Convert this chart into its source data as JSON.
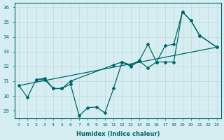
{
  "bg_color": "#d6eef2",
  "grid_color": "#c0d8dc",
  "line_color": "#006666",
  "xlabel": "Humidex (Indice chaleur)",
  "ylim": [
    28.5,
    36.3
  ],
  "xlim": [
    -0.5,
    23.5
  ],
  "x_ticks": [
    0,
    1,
    2,
    3,
    4,
    5,
    6,
    7,
    8,
    9,
    10,
    11,
    12,
    13,
    14,
    15,
    16,
    17,
    18,
    19,
    20,
    21,
    22,
    23
  ],
  "y_ticks": [
    29,
    30,
    31,
    32,
    33,
    34,
    35,
    36
  ],
  "trend_x": [
    0,
    23
  ],
  "trend_y": [
    30.7,
    33.3
  ],
  "upper_x": [
    2,
    3,
    4,
    5,
    6,
    11,
    12,
    13,
    14,
    15,
    16,
    17,
    18,
    19,
    20,
    21,
    23
  ],
  "upper_y": [
    31.1,
    31.2,
    30.5,
    30.5,
    31.0,
    32.1,
    32.3,
    32.1,
    32.4,
    33.5,
    32.3,
    33.4,
    33.5,
    35.7,
    35.1,
    34.1,
    33.3
  ],
  "lower_x": [
    0,
    1,
    2,
    3,
    4,
    5,
    6,
    7,
    8,
    9,
    10,
    11,
    12,
    13,
    14,
    15,
    16,
    17,
    18,
    19,
    20,
    21,
    23
  ],
  "lower_y": [
    30.7,
    29.9,
    31.1,
    31.1,
    30.5,
    30.5,
    30.8,
    28.65,
    29.2,
    29.25,
    28.85,
    30.5,
    32.3,
    32.0,
    32.35,
    31.9,
    32.3,
    32.3,
    32.3,
    35.7,
    35.1,
    34.1,
    33.3
  ]
}
